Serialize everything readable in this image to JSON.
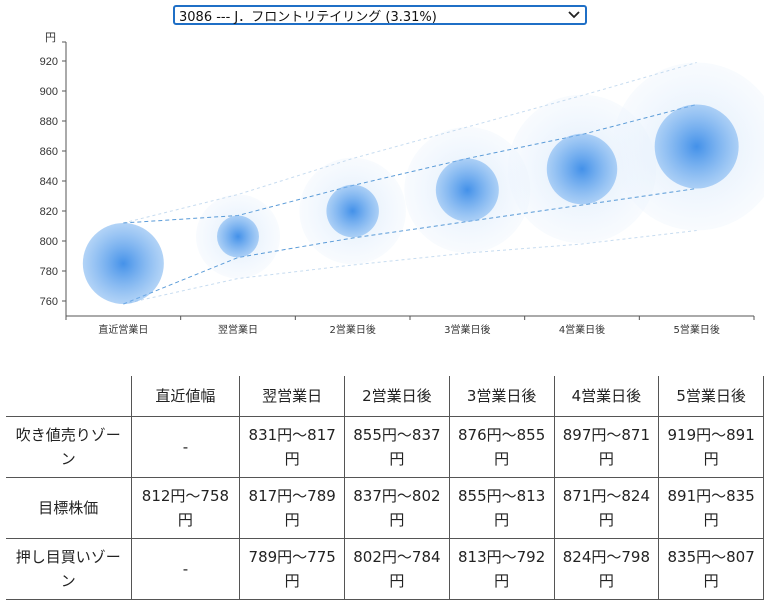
{
  "stock_select": {
    "selected": "3086 ---  J．フロントリテイリング (3.31%)"
  },
  "chart_data": {
    "type": "bubble-forecast",
    "ylabel": "円",
    "ylim": [
      750,
      930
    ],
    "yticks": [
      760,
      780,
      800,
      820,
      840,
      860,
      880,
      900,
      920
    ],
    "categories": [
      "直近営業日",
      "翌営業日",
      "2営業日後",
      "3営業日後",
      "4営業日後",
      "5営業日後"
    ],
    "center": [
      785,
      803,
      820,
      834,
      848,
      863
    ],
    "inner_band": [
      [
        758,
        812
      ],
      [
        789,
        817
      ],
      [
        802,
        837
      ],
      [
        813,
        855
      ],
      [
        824,
        871
      ],
      [
        835,
        891
      ]
    ],
    "outer_band": [
      [
        758,
        812
      ],
      [
        775,
        831
      ],
      [
        784,
        855
      ],
      [
        792,
        876
      ],
      [
        798,
        897
      ],
      [
        807,
        919
      ]
    ],
    "colors": {
      "bubble": "#3b8ce8",
      "guide": "#5a9bd8"
    }
  },
  "table": {
    "headers": [
      "直近値幅",
      "翌営業日",
      "2営業日後",
      "3営業日後",
      "4営業日後",
      "5営業日後"
    ],
    "rows": [
      {
        "label": "吹き値売りゾーン",
        "cells": [
          "-",
          "831円〜817円",
          "855円〜837円",
          "876円〜855円",
          "897円〜871円",
          "919円〜891円"
        ]
      },
      {
        "label": "目標株価",
        "cells": [
          "812円〜758円",
          "817円〜789円",
          "837円〜802円",
          "855円〜813円",
          "871円〜824円",
          "891円〜835円"
        ]
      },
      {
        "label": "押し目買いゾーン",
        "cells": [
          "-",
          "789円〜775円",
          "802円〜784円",
          "813円〜792円",
          "824円〜798円",
          "835円〜807円"
        ]
      }
    ]
  }
}
